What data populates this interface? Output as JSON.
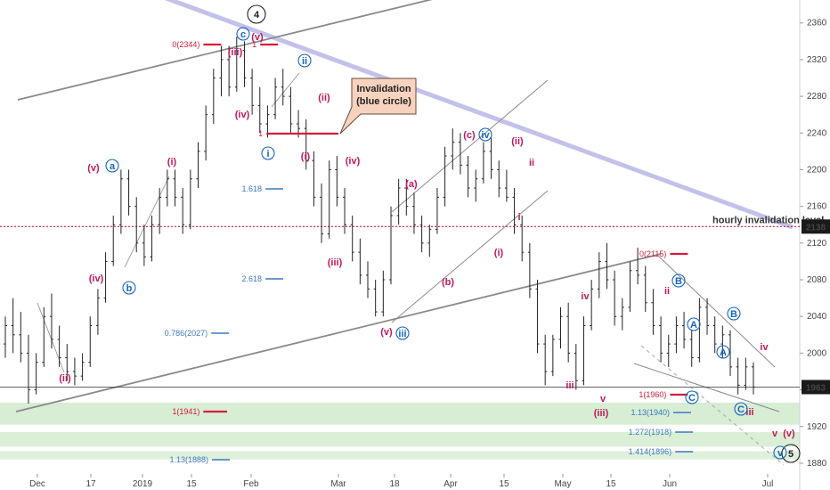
{
  "chart_data": {
    "type": "candlestick",
    "y_ticks": [
      1880,
      1920,
      1960,
      2000,
      2040,
      2080,
      2120,
      2160,
      2200,
      2240,
      2280,
      2320,
      2360
    ],
    "ylim": [
      1878,
      2385
    ],
    "x_ticks": [
      "Dec",
      "17",
      "2019",
      "15",
      "Feb",
      "Mar",
      "18",
      "Apr",
      "15",
      "May",
      "15",
      "Jun",
      "Jul"
    ],
    "current_price": "1963",
    "invalidation_level": "2138",
    "invalidation_label": "hourly invalidation level",
    "callout_title": "Invalidation",
    "callout_subtitle": "(blue circle)",
    "fib_labels": [
      "0(2344)",
      "1",
      "1.618",
      "2.618",
      "0.786(2027)",
      "1(1941)",
      "1.13(1888)",
      "0(2115)",
      "1(1960)",
      "1.13(1940)",
      "1.272(1918)",
      "1.414(1896)"
    ],
    "wave_labels": [
      "4",
      "5",
      "c",
      "ii",
      "i",
      "a",
      "b",
      "iii",
      "iv",
      "v",
      "(iii)",
      "(v)",
      "(iv)",
      "(ii)",
      "(i)",
      "(a)",
      "(b)",
      "(c)",
      "ii",
      "(i)",
      "(ii)",
      "(iii)",
      "(iv)",
      "(v)",
      "(v)",
      "v",
      "iii",
      "iv",
      "i",
      "(i)",
      "ii",
      "(ii)",
      "iii",
      "(iii)",
      "iv",
      "(iv)",
      "v",
      "(v)",
      "A",
      "B",
      "C",
      "A",
      "B",
      "C"
    ],
    "series": [
      {
        "values": [
          [
            2010,
            2040,
            1995,
            2030
          ],
          [
            2030,
            2060,
            2000,
            2020
          ],
          [
            2020,
            2045,
            1990,
            2000
          ],
          [
            2000,
            2020,
            1945,
            1960
          ],
          [
            1960,
            2000,
            1955,
            1990
          ],
          [
            1990,
            2050,
            1985,
            2040
          ],
          [
            2040,
            2065,
            2005,
            2015
          ],
          [
            2015,
            2030,
            1985,
            1995
          ],
          [
            1995,
            2010,
            1970,
            1980
          ],
          [
            1980,
            1995,
            1965,
            1975
          ],
          [
            1975,
            2000,
            1970,
            1990
          ],
          [
            1990,
            2040,
            1985,
            2030
          ],
          [
            2030,
            2070,
            2020,
            2060
          ],
          [
            2060,
            2110,
            2055,
            2100
          ],
          [
            2100,
            2150,
            2095,
            2140
          ],
          [
            2140,
            2200,
            2130,
            2190
          ],
          [
            2190,
            2200,
            2150,
            2160
          ],
          [
            2160,
            2170,
            2110,
            2120
          ],
          [
            2120,
            2140,
            2095,
            2105
          ],
          [
            2105,
            2150,
            2100,
            2140
          ],
          [
            2140,
            2180,
            2130,
            2170
          ],
          [
            2170,
            2200,
            2160,
            2190
          ],
          [
            2190,
            2200,
            2160,
            2170
          ],
          [
            2170,
            2180,
            2130,
            2140
          ],
          [
            2140,
            2200,
            2135,
            2190
          ],
          [
            2190,
            2230,
            2180,
            2220
          ],
          [
            2220,
            2270,
            2210,
            2260
          ],
          [
            2260,
            2310,
            2250,
            2300
          ],
          [
            2300,
            2335,
            2280,
            2320
          ],
          [
            2320,
            2335,
            2280,
            2290
          ],
          [
            2290,
            2345,
            2285,
            2330
          ],
          [
            2330,
            2340,
            2290,
            2300
          ],
          [
            2300,
            2310,
            2260,
            2270
          ],
          [
            2270,
            2290,
            2240,
            2250
          ],
          [
            2250,
            2270,
            2235,
            2260
          ],
          [
            2260,
            2300,
            2255,
            2290
          ],
          [
            2290,
            2310,
            2270,
            2280
          ],
          [
            2280,
            2290,
            2240,
            2250
          ],
          [
            2250,
            2265,
            2235,
            2245
          ],
          [
            2245,
            2255,
            2200,
            2210
          ],
          [
            2210,
            2220,
            2160,
            2170
          ],
          [
            2170,
            2185,
            2120,
            2130
          ],
          [
            2130,
            2210,
            2125,
            2200
          ],
          [
            2200,
            2215,
            2160,
            2170
          ],
          [
            2170,
            2180,
            2130,
            2140
          ],
          [
            2140,
            2150,
            2100,
            2110
          ],
          [
            2110,
            2125,
            2075,
            2085
          ],
          [
            2085,
            2100,
            2060,
            2070
          ],
          [
            2070,
            2080,
            2040,
            2045
          ],
          [
            2045,
            2090,
            2040,
            2080
          ],
          [
            2080,
            2160,
            2075,
            2150
          ],
          [
            2150,
            2190,
            2140,
            2180
          ],
          [
            2180,
            2190,
            2150,
            2160
          ],
          [
            2160,
            2175,
            2130,
            2140
          ],
          [
            2140,
            2150,
            2110,
            2120
          ],
          [
            2120,
            2140,
            2105,
            2135
          ],
          [
            2135,
            2180,
            2130,
            2170
          ],
          [
            2170,
            2225,
            2160,
            2215
          ],
          [
            2215,
            2245,
            2200,
            2230
          ],
          [
            2230,
            2240,
            2195,
            2205
          ],
          [
            2205,
            2215,
            2170,
            2180
          ],
          [
            2180,
            2200,
            2165,
            2190
          ],
          [
            2190,
            2230,
            2185,
            2220
          ],
          [
            2220,
            2235,
            2190,
            2200
          ],
          [
            2200,
            2210,
            2170,
            2180
          ],
          [
            2180,
            2200,
            2165,
            2170
          ],
          [
            2170,
            2180,
            2130,
            2140
          ],
          [
            2140,
            2150,
            2100,
            2110
          ],
          [
            2110,
            2120,
            2060,
            2070
          ],
          [
            2070,
            2080,
            2000,
            2010
          ],
          [
            2010,
            2020,
            1965,
            1980
          ],
          [
            1980,
            2020,
            1975,
            2015
          ],
          [
            2015,
            2050,
            2005,
            2040
          ],
          [
            2040,
            2055,
            1990,
            2000
          ],
          [
            2000,
            2010,
            1960,
            1970
          ],
          [
            1970,
            2040,
            1965,
            2030
          ],
          [
            2030,
            2080,
            2025,
            2070
          ],
          [
            2070,
            2110,
            2060,
            2100
          ],
          [
            2100,
            2120,
            2070,
            2080
          ],
          [
            2080,
            2090,
            2030,
            2040
          ],
          [
            2040,
            2060,
            2025,
            2050
          ],
          [
            2050,
            2100,
            2045,
            2090
          ],
          [
            2090,
            2115,
            2075,
            2085
          ],
          [
            2085,
            2095,
            2045,
            2055
          ],
          [
            2055,
            2070,
            2020,
            2030
          ],
          [
            2030,
            2040,
            1990,
            2000
          ],
          [
            2000,
            2020,
            1985,
            2010
          ],
          [
            2010,
            2040,
            2000,
            2030
          ],
          [
            2030,
            2045,
            2005,
            2015
          ],
          [
            2015,
            2025,
            1985,
            1995
          ],
          [
            1995,
            2060,
            1990,
            2050
          ],
          [
            2050,
            2060,
            2020,
            2030
          ],
          [
            2030,
            2040,
            2000,
            2010
          ],
          [
            2010,
            2030,
            1995,
            2020
          ],
          [
            2020,
            2025,
            1975,
            1985
          ],
          [
            1985,
            1995,
            1955,
            1965
          ],
          [
            1965,
            1995,
            1960,
            1985
          ],
          [
            1985,
            1990,
            1955,
            1963
          ]
        ]
      }
    ],
    "colors": {
      "candle": "#222222",
      "wave_magenta": "#c2185b",
      "wave_blue": "#1565c0",
      "fib_red": "#d81b3c",
      "fib_blue": "#3b78c4",
      "channel_gray": "#8a8a8a",
      "trendline_lavender": "#b8b6e6",
      "invalidation_dotted": "#d81b3c",
      "callout_fill": "#f7d3bf",
      "zone_green": "#b7dfb0"
    }
  }
}
